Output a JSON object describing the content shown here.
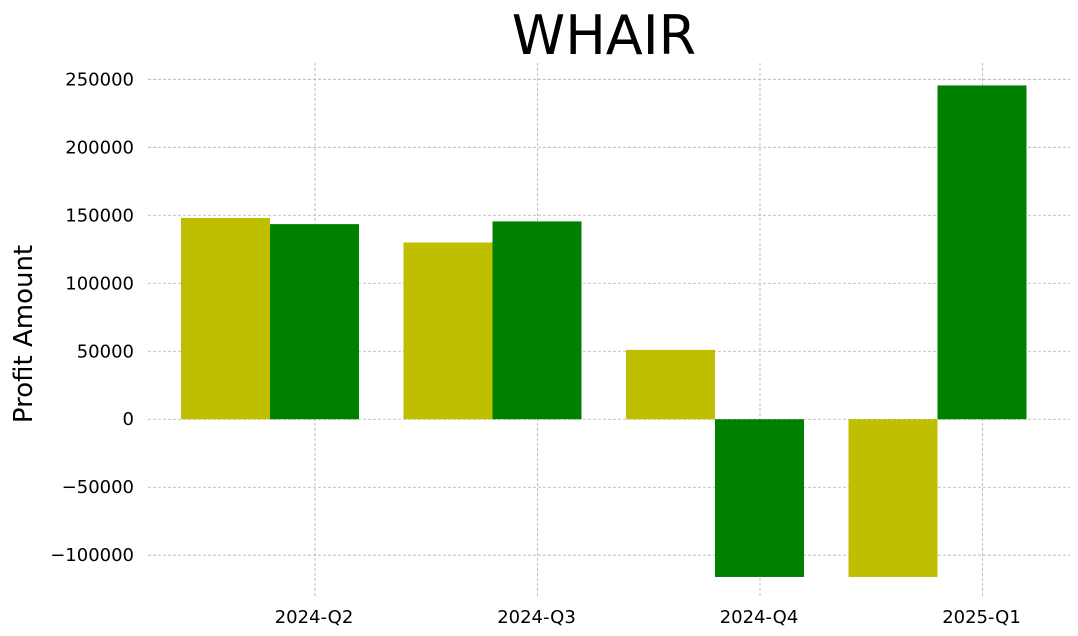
{
  "chart_data": {
    "type": "bar",
    "title": "WHAIR",
    "xlabel": "",
    "ylabel": "Profit Amount",
    "categories": [
      "2024-Q2",
      "2024-Q3",
      "2024-Q4",
      "2025-Q1"
    ],
    "series": [
      {
        "color": "#bfbf00",
        "values": [
          148000,
          130000,
          51000,
          -116000
        ]
      },
      {
        "color": "#008000",
        "values": [
          143500,
          145500,
          -116000,
          245500
        ]
      }
    ],
    "ylim": [
      -130000,
      262000
    ],
    "yticks": [
      -100000,
      -50000,
      0,
      50000,
      100000,
      150000,
      200000,
      250000
    ],
    "ytick_labels": [
      "−100000",
      "−50000",
      "0",
      "50000",
      "100000",
      "150000",
      "200000",
      "250000"
    ],
    "grid": true,
    "legend": "none"
  }
}
